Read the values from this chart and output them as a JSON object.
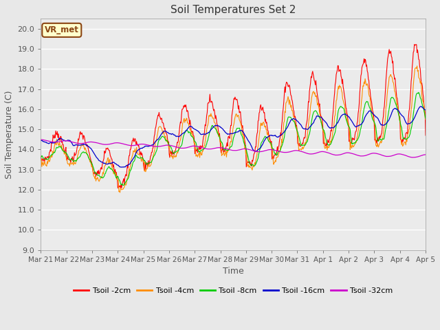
{
  "title": "Soil Temperatures Set 2",
  "xlabel": "Time",
  "ylabel": "Soil Temperature (C)",
  "ylim": [
    9.0,
    20.5
  ],
  "yticks": [
    9.0,
    10.0,
    11.0,
    12.0,
    13.0,
    14.0,
    15.0,
    16.0,
    17.0,
    18.0,
    19.0,
    20.0
  ],
  "bg_color": "#e8e8e8",
  "plot_bg": "#ebebeb",
  "annotation_text": "VR_met",
  "annotation_bg": "#ffffcc",
  "annotation_border": "#8B4513",
  "series_colors": {
    "Tsoil -2cm": "#ff0000",
    "Tsoil -4cm": "#ff8c00",
    "Tsoil -8cm": "#00cc00",
    "Tsoil -16cm": "#0000cc",
    "Tsoil -32cm": "#cc00cc"
  },
  "x_tick_labels": [
    "Mar 21",
    "Mar 22",
    "Mar 23",
    "Mar 24",
    "Mar 25",
    "Mar 26",
    "Mar 27",
    "Mar 28",
    "Mar 29",
    "Mar 30",
    "Mar 31",
    "Apr 1",
    "Apr 2",
    "Apr 3",
    "Apr 4",
    "Apr 5"
  ]
}
